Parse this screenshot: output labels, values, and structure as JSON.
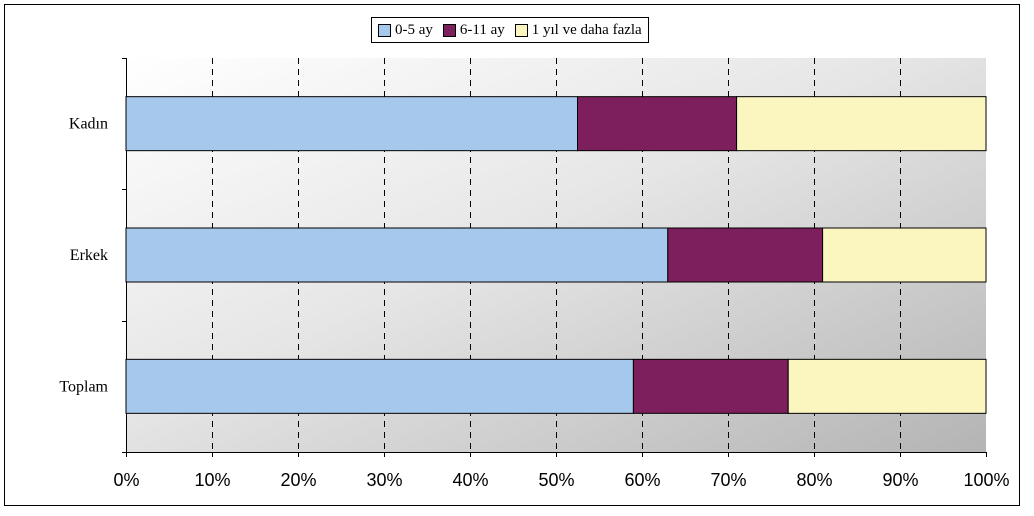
{
  "chart_data": {
    "type": "bar",
    "orientation": "horizontal",
    "stacked": "percent",
    "categories": [
      "Kadın",
      "Erkek",
      "Toplam"
    ],
    "series": [
      {
        "name": "0-5 ay",
        "values": [
          52.5,
          63,
          59
        ],
        "color": "#a6c8ec"
      },
      {
        "name": "6-11 ay",
        "values": [
          18.5,
          18,
          18
        ],
        "color": "#7d1f5d"
      },
      {
        "name": "1 yıl ve daha fazla",
        "values": [
          29,
          19,
          23
        ],
        "color": "#fbf6c0"
      }
    ],
    "xlim": [
      0,
      100
    ],
    "x_ticks": [
      "0%",
      "10%",
      "20%",
      "30%",
      "40%",
      "50%",
      "60%",
      "70%",
      "80%",
      "90%",
      "100%"
    ],
    "grid": "vertical dashed",
    "legend_position": "top"
  }
}
